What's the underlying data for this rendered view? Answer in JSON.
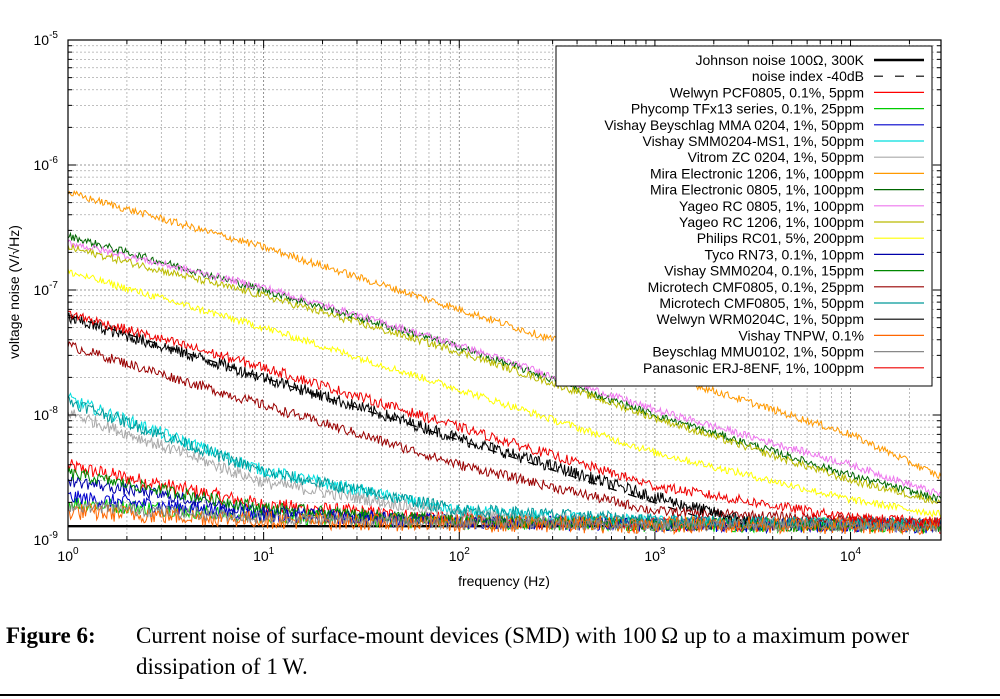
{
  "chart_data": {
    "type": "line",
    "xscale": "log",
    "yscale": "log",
    "xlim": [
      1,
      29000
    ],
    "ylim": [
      1e-09,
      1e-05
    ],
    "xlabel": "frequency (Hz)",
    "ylabel": "voltage noise (V/√Hz)",
    "x_ticks": [
      {
        "value": 1,
        "base": "10",
        "exp": "0"
      },
      {
        "value": 10,
        "base": "10",
        "exp": "1"
      },
      {
        "value": 100,
        "base": "10",
        "exp": "2"
      },
      {
        "value": 1000,
        "base": "10",
        "exp": "3"
      },
      {
        "value": 10000,
        "base": "10",
        "exp": "4"
      }
    ],
    "y_ticks": [
      {
        "value": 1e-09,
        "base": "10",
        "exp": "-9"
      },
      {
        "value": 1e-08,
        "base": "10",
        "exp": "-8"
      },
      {
        "value": 1e-07,
        "base": "10",
        "exp": "-7"
      },
      {
        "value": 1e-06,
        "base": "10",
        "exp": "-6"
      },
      {
        "value": 1e-05,
        "base": "10",
        "exp": "-5"
      }
    ],
    "grid": true,
    "legend_position": "top-right",
    "series": [
      {
        "name": "Johnson noise 100Ω, 300K",
        "color": "#000000",
        "style": "thick",
        "points": [
          [
            1,
            1.29e-09
          ],
          [
            29000,
            1.29e-09
          ]
        ]
      },
      {
        "name": "noise index -40dB",
        "color": "#000000",
        "style": "dashed",
        "points": [
          [
            1,
            6.3e-08
          ],
          [
            2000,
            1.4e-09
          ]
        ]
      },
      {
        "name": "Welwyn PCF0805, 0.1%, 5ppm",
        "color": "#ff0000",
        "noise": 0.06,
        "points": [
          [
            1,
            3.9e-09
          ],
          [
            10,
            1.9e-09
          ],
          [
            100,
            1.45e-09
          ],
          [
            1000,
            1.35e-09
          ],
          [
            29000,
            1.3e-09
          ]
        ]
      },
      {
        "name": "Phycomp TFx13 series, 0.1%, 25ppm",
        "color": "#00cc00",
        "noise": 0.06,
        "points": [
          [
            1,
            2e-09
          ],
          [
            10,
            1.55e-09
          ],
          [
            100,
            1.38e-09
          ],
          [
            1000,
            1.33e-09
          ],
          [
            29000,
            1.3e-09
          ]
        ]
      },
      {
        "name": "Vishay Beyschlag MMA 0204, 1%, 50ppm",
        "color": "#0000cc",
        "noise": 0.06,
        "points": [
          [
            1,
            2.2e-09
          ],
          [
            10,
            1.6e-09
          ],
          [
            100,
            1.4e-09
          ],
          [
            1000,
            1.33e-09
          ],
          [
            29000,
            1.3e-09
          ]
        ]
      },
      {
        "name": "Vishay SMM0204-MS1, 1%, 50ppm",
        "color": "#00dddd",
        "noise": 0.05,
        "points": [
          [
            1,
            1.35e-08
          ],
          [
            10,
            3.6e-09
          ],
          [
            100,
            1.7e-09
          ],
          [
            1000,
            1.4e-09
          ],
          [
            29000,
            1.31e-09
          ]
        ]
      },
      {
        "name": "Vitrom ZC 0204, 1%, 50ppm",
        "color": "#aaaaaa",
        "noise": 0.05,
        "points": [
          [
            1,
            1.05e-08
          ],
          [
            10,
            2.9e-09
          ],
          [
            100,
            1.6e-09
          ],
          [
            1000,
            1.38e-09
          ],
          [
            29000,
            1.3e-09
          ]
        ]
      },
      {
        "name": "Mira Electronic 1206, 1%, 100ppm",
        "color": "#ff9900",
        "noise": 0.03,
        "points": [
          [
            1,
            6e-07
          ],
          [
            10,
            2.2e-07
          ],
          [
            100,
            7e-08
          ],
          [
            1000,
            2.2e-08
          ],
          [
            10000,
            7e-09
          ],
          [
            29000,
            3.2e-09
          ]
        ]
      },
      {
        "name": "Mira Electronic 0805, 1%, 100ppm",
        "color": "#006600",
        "noise": 0.03,
        "points": [
          [
            1,
            2.7e-07
          ],
          [
            10,
            1e-07
          ],
          [
            100,
            3.5e-08
          ],
          [
            1000,
            1e-08
          ],
          [
            10000,
            3.3e-09
          ],
          [
            29000,
            2.1e-09
          ]
        ]
      },
      {
        "name": "Yageo RC 0805, 1%, 100ppm",
        "color": "#ee77ee",
        "noise": 0.03,
        "points": [
          [
            1,
            2.4e-07
          ],
          [
            10,
            1.05e-07
          ],
          [
            100,
            3.6e-08
          ],
          [
            1000,
            1.1e-08
          ],
          [
            10000,
            4e-09
          ],
          [
            29000,
            2.3e-09
          ]
        ]
      },
      {
        "name": "Yageo RC 1206, 1%, 100ppm",
        "color": "#bbbb00",
        "noise": 0.03,
        "points": [
          [
            1,
            2.2e-07
          ],
          [
            10,
            9e-08
          ],
          [
            100,
            3.2e-08
          ],
          [
            1000,
            9.5e-09
          ],
          [
            10000,
            3e-09
          ],
          [
            29000,
            2e-09
          ]
        ]
      },
      {
        "name": "Philips RC01, 5%, 200ppm",
        "color": "#ffff00",
        "noise": 0.03,
        "points": [
          [
            1,
            1.4e-07
          ],
          [
            10,
            5e-08
          ],
          [
            100,
            1.6e-08
          ],
          [
            1000,
            5e-09
          ],
          [
            10000,
            2.1e-09
          ],
          [
            29000,
            1.6e-09
          ]
        ]
      },
      {
        "name": "Tyco RN73, 0.1%, 10ppm",
        "color": "#0000aa",
        "noise": 0.05,
        "points": [
          [
            1,
            3e-09
          ],
          [
            10,
            1.7e-09
          ],
          [
            100,
            1.4e-09
          ],
          [
            1000,
            1.33e-09
          ],
          [
            29000,
            1.3e-09
          ]
        ]
      },
      {
        "name": "Vishay SMM0204, 0.1%, 15ppm",
        "color": "#008800",
        "noise": 0.05,
        "points": [
          [
            1,
            3.4e-09
          ],
          [
            10,
            1.8e-09
          ],
          [
            100,
            1.42e-09
          ],
          [
            1000,
            1.34e-09
          ],
          [
            29000,
            1.3e-09
          ]
        ]
      },
      {
        "name": "Microtech CMF0805, 0.1%, 25ppm",
        "color": "#990000",
        "noise": 0.04,
        "points": [
          [
            1,
            3.6e-08
          ],
          [
            10,
            1.2e-08
          ],
          [
            100,
            4e-09
          ],
          [
            1000,
            1.7e-09
          ],
          [
            29000,
            1.35e-09
          ]
        ]
      },
      {
        "name": "Microtech CMF0805, 1%, 50ppm",
        "color": "#009999",
        "noise": 0.05,
        "points": [
          [
            1,
            1.3e-08
          ],
          [
            10,
            3.5e-09
          ],
          [
            100,
            1.75e-09
          ],
          [
            1000,
            1.45e-09
          ],
          [
            29000,
            1.35e-09
          ]
        ]
      },
      {
        "name": "Welwyn WRM0204C, 1%, 50ppm",
        "color": "#000000",
        "noise": 0.05,
        "points": [
          [
            1,
            6e-08
          ],
          [
            10,
            2e-08
          ],
          [
            100,
            6.5e-09
          ],
          [
            1000,
            2.2e-09
          ],
          [
            3000,
            1.4e-09
          ]
        ]
      },
      {
        "name": "Vishay TNPW, 0.1%",
        "color": "#ff6600",
        "noise": 0.07,
        "points": [
          [
            1,
            1.7e-09
          ],
          [
            10,
            1.45e-09
          ],
          [
            100,
            1.35e-09
          ],
          [
            1000,
            1.32e-09
          ],
          [
            29000,
            1.3e-09
          ]
        ]
      },
      {
        "name": "Beyschlag MMU0102, 1%, 50ppm",
        "color": "#888888",
        "noise": 0.05,
        "points": [
          [
            1,
            1.9e-09
          ],
          [
            10,
            1.5e-09
          ],
          [
            100,
            1.37e-09
          ],
          [
            1000,
            1.32e-09
          ],
          [
            29000,
            1.3e-09
          ]
        ]
      },
      {
        "name": "Panasonic ERJ-8ENF, 1%, 100ppm",
        "color": "#ee0000",
        "noise": 0.04,
        "points": [
          [
            1,
            6.5e-08
          ],
          [
            10,
            2.4e-08
          ],
          [
            100,
            8e-09
          ],
          [
            1000,
            2.7e-09
          ],
          [
            10000,
            1.5e-09
          ],
          [
            29000,
            1.4e-09
          ]
        ]
      }
    ]
  },
  "caption": {
    "label": "Figure 6:",
    "text": "Current noise of surface-mount devices (SMD) with 100 Ω up to a maximum power dissipation of 1 W."
  }
}
